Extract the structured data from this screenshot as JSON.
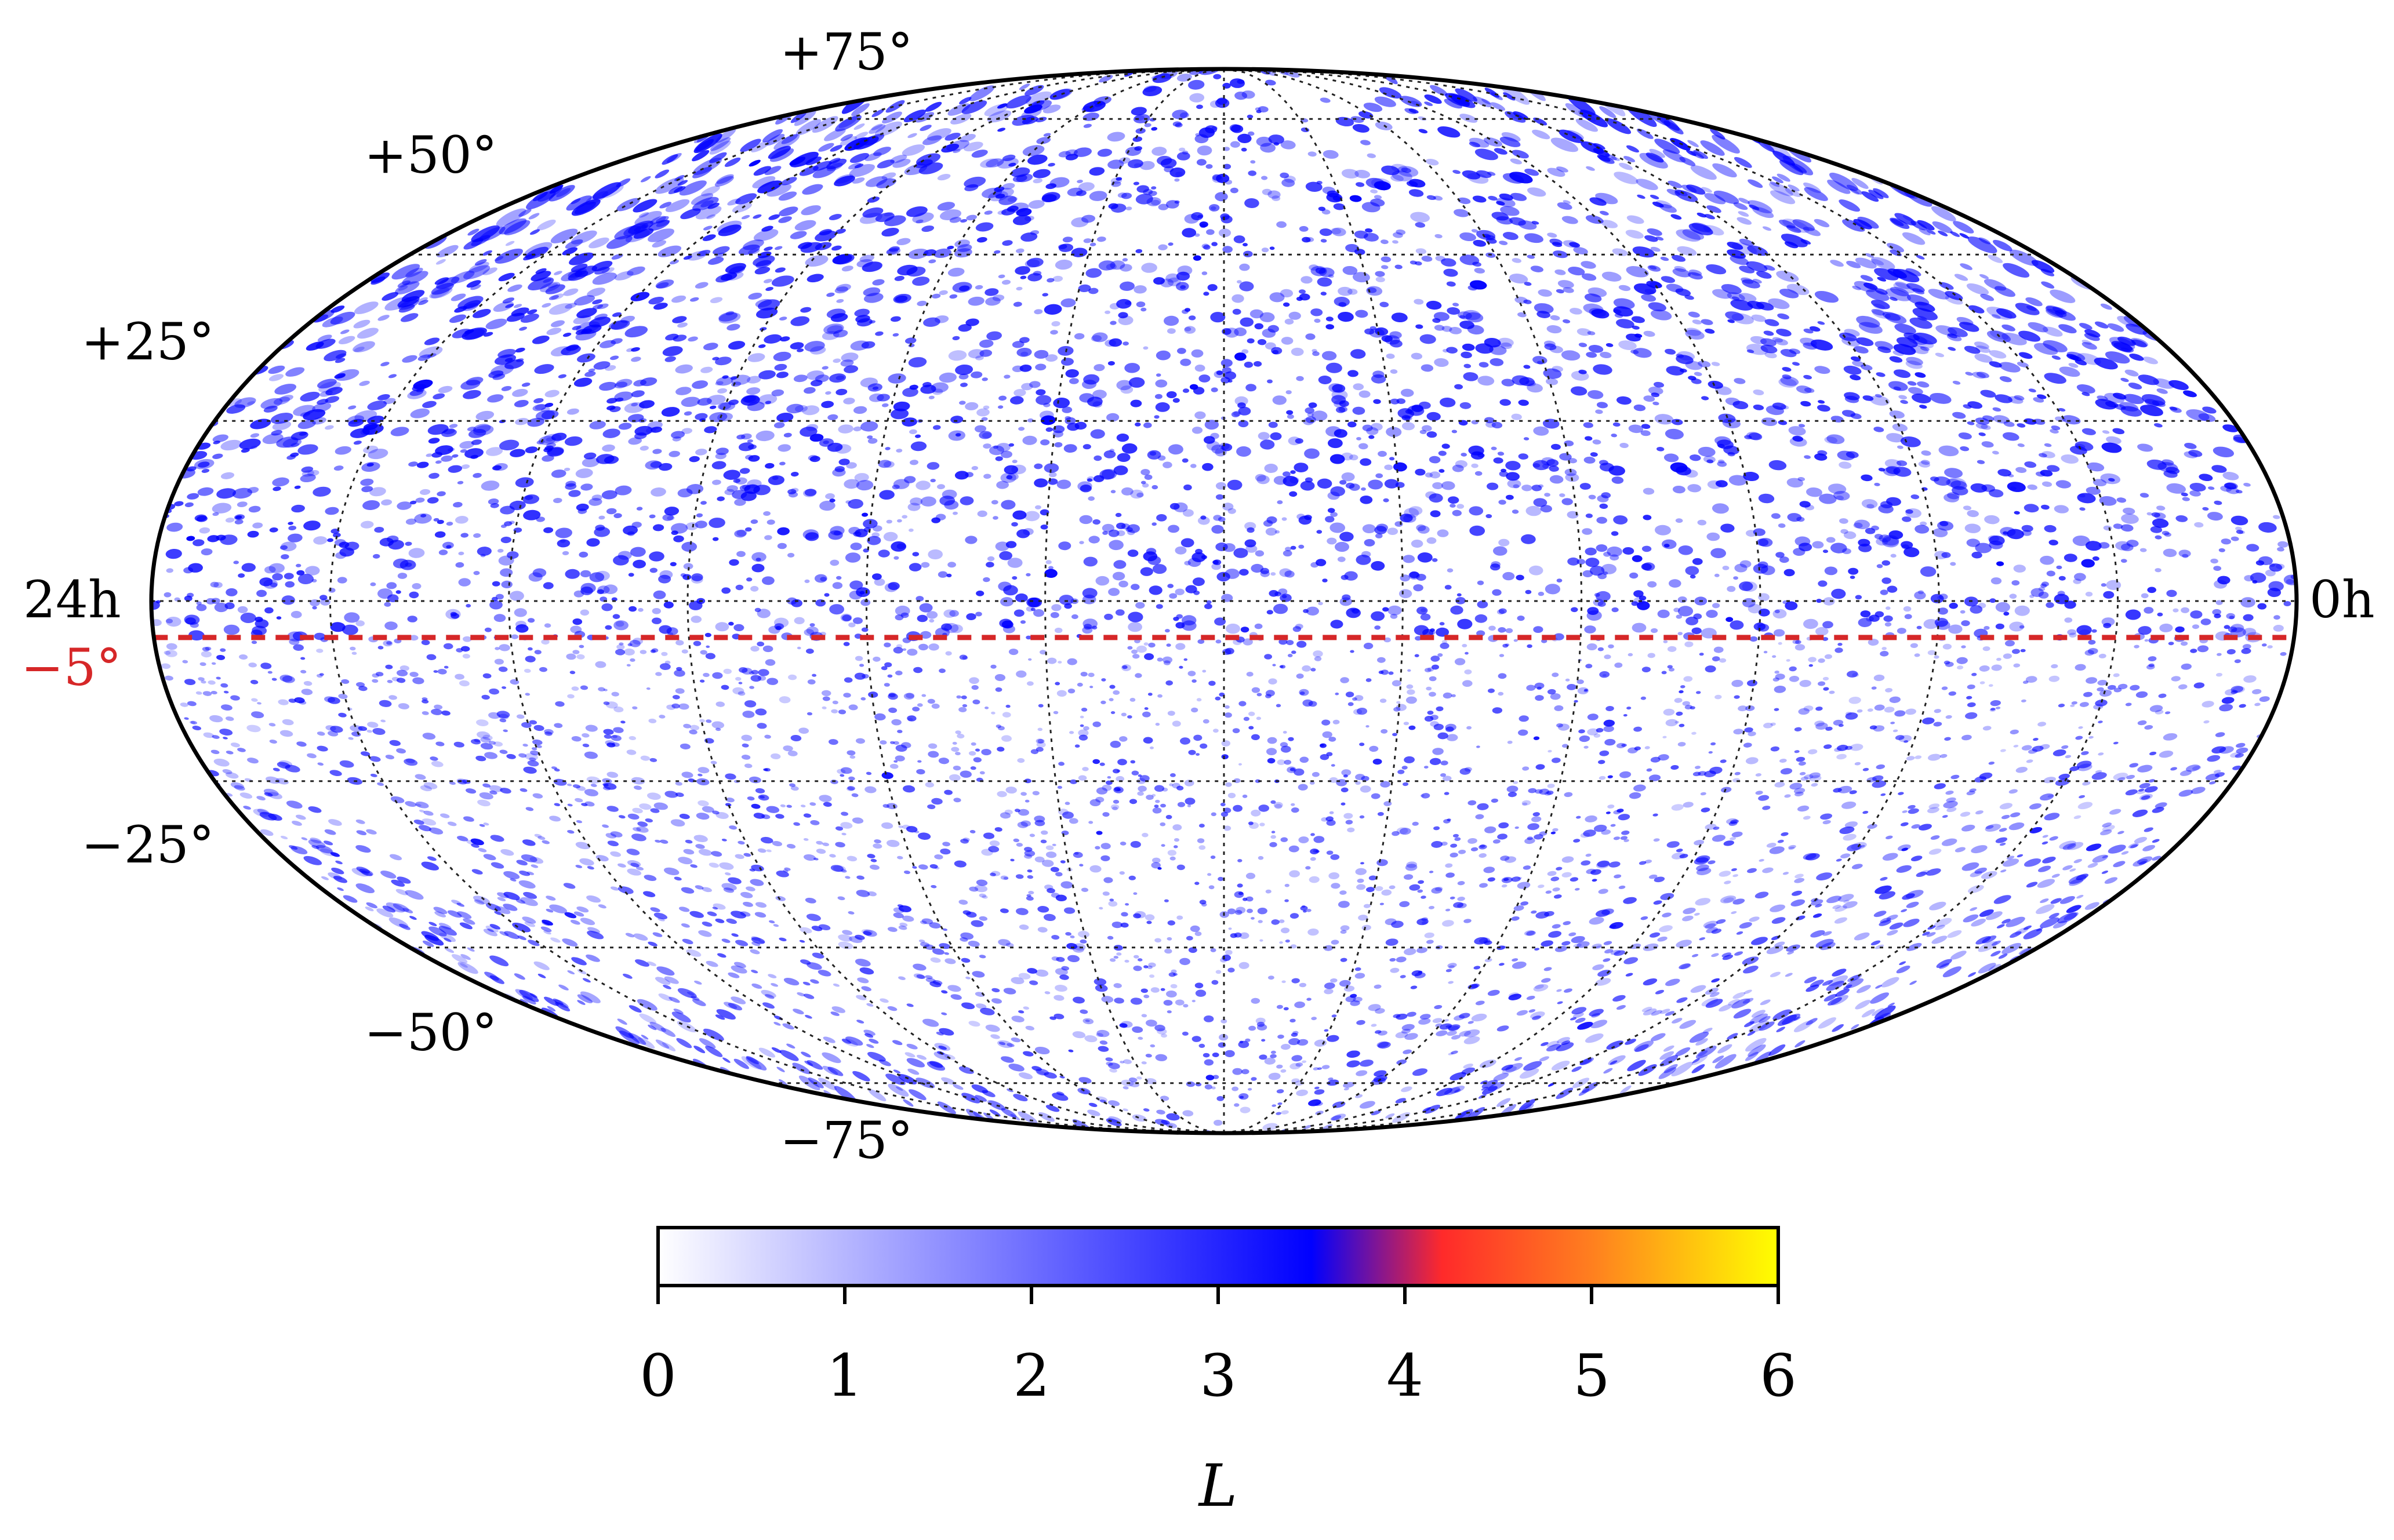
{
  "map": {
    "projection": "mollweide",
    "grid": true,
    "ra_labels": {
      "left": "24h",
      "right": "0h"
    },
    "dec_labels": [
      {
        "text": "+75°",
        "dec": 75
      },
      {
        "text": "+50°",
        "dec": 50
      },
      {
        "text": "+25°",
        "dec": 25
      },
      {
        "text": "−25°",
        "dec": -25
      },
      {
        "text": "−50°",
        "dec": -50
      },
      {
        "text": "−75°",
        "dec": -75
      }
    ],
    "reference_line": {
      "dec": -5,
      "label": "−5°",
      "color": "#d62728",
      "style": "dashed"
    },
    "background_fill": "#ffffff",
    "speckle_color": "#0000ff"
  },
  "colorbar": {
    "label": "L",
    "min": 0,
    "max": 6,
    "ticks": [
      "0",
      "1",
      "2",
      "3",
      "4",
      "5",
      "6"
    ],
    "stops": [
      {
        "v": 0.0,
        "color": "#ffffff"
      },
      {
        "v": 3.5,
        "color": "#0000ff"
      },
      {
        "v": 4.2,
        "color": "#ff2a2a"
      },
      {
        "v": 5.0,
        "color": "#ff7f1f"
      },
      {
        "v": 6.0,
        "color": "#ffff00"
      }
    ]
  }
}
